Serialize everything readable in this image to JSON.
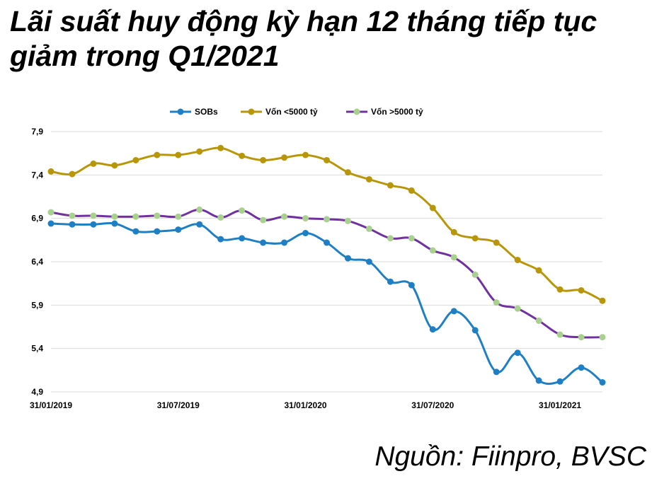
{
  "header": {
    "title_line1": "Lãi suất huy động kỳ hạn 12 tháng tiếp tục",
    "title_line2": "giảm trong Q1/2021"
  },
  "footer": {
    "source": "Nguồn: Fiinpro, BVSC"
  },
  "colors": {
    "sobs": "#1f7fc4",
    "small": "#b8960a",
    "large_line": "#7030a0",
    "large_marker": "#a9d18e",
    "grid": "#d9d9d9"
  },
  "chart_data": {
    "type": "line",
    "title": "Lãi suất huy động kỳ hạn 12 tháng tiếp tục giảm trong Q1/2021",
    "legend_position": "top",
    "grid": true,
    "ylim": [
      4.9,
      7.9
    ],
    "y_ticks": [
      "7,9",
      "7,4",
      "6,9",
      "6,4",
      "5,9",
      "5,4",
      "4,9"
    ],
    "y_tick_values": [
      7.9,
      7.4,
      6.9,
      6.4,
      5.9,
      5.4,
      4.9
    ],
    "x_ticks": [
      "31/01/2019",
      "31/07/2019",
      "31/01/2020",
      "31/07/2020",
      "31/01/2021"
    ],
    "x_tick_index": [
      0,
      6,
      12,
      18,
      24
    ],
    "x": [
      "31/01/2019",
      "28/02/2019",
      "31/03/2019",
      "30/04/2019",
      "31/05/2019",
      "30/06/2019",
      "31/07/2019",
      "31/08/2019",
      "30/09/2019",
      "31/10/2019",
      "30/11/2019",
      "31/12/2019",
      "31/01/2020",
      "29/02/2020",
      "31/03/2020",
      "30/04/2020",
      "31/05/2020",
      "30/06/2020",
      "31/07/2020",
      "31/08/2020",
      "30/09/2020",
      "31/10/2020",
      "30/11/2020",
      "31/12/2020",
      "31/01/2021",
      "28/02/2021",
      "31/03/2021"
    ],
    "series": [
      {
        "name": "SOBs",
        "values": [
          6.84,
          6.83,
          6.83,
          6.84,
          6.75,
          6.75,
          6.77,
          6.83,
          6.66,
          6.67,
          6.62,
          6.62,
          6.73,
          6.62,
          6.44,
          6.4,
          6.17,
          6.13,
          5.62,
          5.83,
          5.61,
          5.13,
          5.35,
          5.03,
          5.02,
          5.18,
          5.01
        ]
      },
      {
        "name": "Vốn <5000 tỷ",
        "values": [
          7.44,
          7.41,
          7.53,
          7.51,
          7.57,
          7.63,
          7.63,
          7.67,
          7.71,
          7.62,
          7.57,
          7.6,
          7.63,
          7.57,
          7.43,
          7.35,
          7.28,
          7.22,
          7.02,
          6.74,
          6.67,
          6.62,
          6.42,
          6.3,
          6.08,
          6.07,
          5.95
        ]
      },
      {
        "name": "Vốn >5000 tỷ",
        "values": [
          6.97,
          6.93,
          6.93,
          6.92,
          6.92,
          6.93,
          6.92,
          7.0,
          6.91,
          6.99,
          6.88,
          6.92,
          6.9,
          6.89,
          6.87,
          6.78,
          6.67,
          6.67,
          6.53,
          6.45,
          6.25,
          5.93,
          5.86,
          5.72,
          5.56,
          5.53,
          5.53
        ]
      }
    ]
  }
}
